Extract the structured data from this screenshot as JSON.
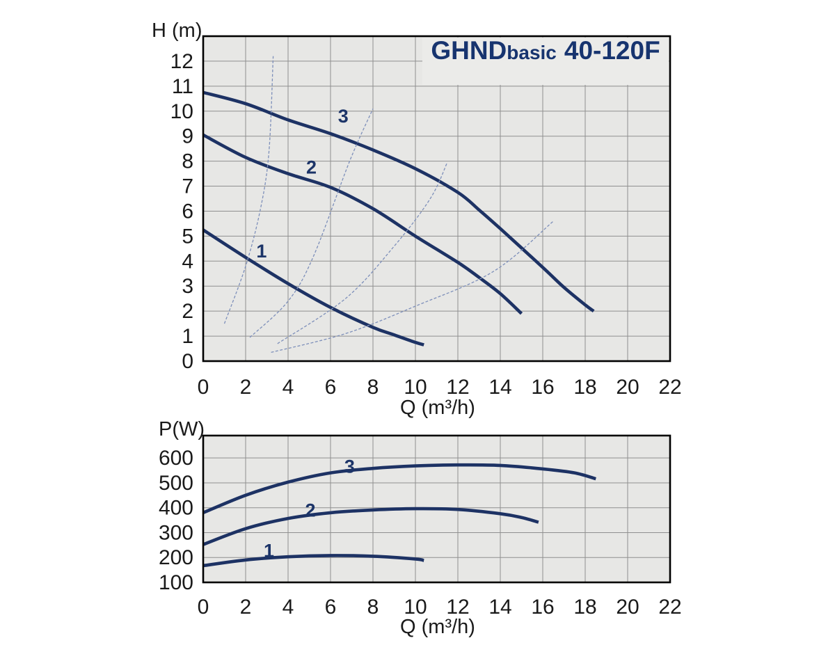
{
  "figure": {
    "kind": "pump-performance-curves",
    "colors": {
      "page_bg": "#ffffff",
      "plot_bg": "#e7e7e5",
      "title_box_bg": "#ebebe9",
      "grid": "#8f8f8f",
      "border": "#000000",
      "curve_navy": "#1d3264",
      "system_curve_blue": "#7d8fba",
      "label_navy": "#1c3468",
      "title_navy": "#17346f",
      "tick_text": "#1a1a1a"
    },
    "title_parts": {
      "brand": "GHND",
      "variant": "basic",
      "model": "40-120F"
    },
    "title_full": "GHNDbasic 40-120F"
  },
  "chart_data": [
    {
      "id": "head-flow-chart",
      "type": "line",
      "title": "GHNDbasic 40-120F",
      "xlabel": "Q (m³/h)",
      "ylabel": "H (m)",
      "xlim": [
        0,
        22
      ],
      "ylim": [
        0,
        13
      ],
      "x_ticks": [
        0,
        2,
        4,
        6,
        8,
        10,
        12,
        14,
        16,
        18,
        20,
        22
      ],
      "y_ticks": [
        0,
        1,
        2,
        3,
        4,
        5,
        6,
        7,
        8,
        9,
        10,
        11,
        12
      ],
      "grid": true,
      "legend": "none",
      "series": [
        {
          "name": "speed-3-head-curve",
          "style": "main",
          "label": "3",
          "label_at": [
            6.6,
            9.8
          ],
          "points": [
            [
              0,
              10.75
            ],
            [
              2,
              10.3
            ],
            [
              4,
              9.65
            ],
            [
              6,
              9.1
            ],
            [
              8,
              8.45
            ],
            [
              10,
              7.7
            ],
            [
              12,
              6.75
            ],
            [
              13,
              6.05
            ],
            [
              14,
              5.3
            ],
            [
              16,
              3.75
            ],
            [
              17,
              2.95
            ],
            [
              18,
              2.25
            ],
            [
              18.4,
              2.0
            ]
          ]
        },
        {
          "name": "speed-2-head-curve",
          "style": "main",
          "label": "2",
          "label_at": [
            5.1,
            7.75
          ],
          "points": [
            [
              0,
              9.05
            ],
            [
              2,
              8.15
            ],
            [
              4,
              7.5
            ],
            [
              6,
              6.95
            ],
            [
              8,
              6.1
            ],
            [
              10,
              5.0
            ],
            [
              12,
              3.95
            ],
            [
              13,
              3.35
            ],
            [
              14,
              2.7
            ],
            [
              15,
              1.9
            ]
          ]
        },
        {
          "name": "speed-1-head-curve",
          "style": "main",
          "label": "1",
          "label_at": [
            2.75,
            4.4
          ],
          "points": [
            [
              0,
              5.25
            ],
            [
              2,
              4.15
            ],
            [
              4,
              3.1
            ],
            [
              6,
              2.15
            ],
            [
              8,
              1.35
            ],
            [
              9,
              1.05
            ],
            [
              10,
              0.75
            ],
            [
              10.4,
              0.65
            ]
          ]
        },
        {
          "name": "system-curve-a",
          "style": "thin",
          "points": [
            [
              1.0,
              1.5
            ],
            [
              2.0,
              3.8
            ],
            [
              2.7,
              6.1
            ],
            [
              3.1,
              8.4
            ],
            [
              3.3,
              12.2
            ]
          ]
        },
        {
          "name": "system-curve-b",
          "style": "thin",
          "points": [
            [
              2.2,
              0.95
            ],
            [
              4.0,
              2.4
            ],
            [
              5.2,
              4.2
            ],
            [
              6.9,
              8.0
            ],
            [
              8.0,
              10.1
            ]
          ]
        },
        {
          "name": "system-curve-c",
          "style": "thin",
          "points": [
            [
              3.5,
              0.7
            ],
            [
              6.7,
              2.5
            ],
            [
              9.0,
              4.6
            ],
            [
              10.7,
              6.5
            ],
            [
              11.5,
              7.95
            ]
          ]
        },
        {
          "name": "system-curve-d",
          "style": "thin",
          "points": [
            [
              3.2,
              0.35
            ],
            [
              6.7,
              1.1
            ],
            [
              10.0,
              2.2
            ],
            [
              13.7,
              3.6
            ],
            [
              16.5,
              5.6
            ]
          ]
        }
      ]
    },
    {
      "id": "power-flow-chart",
      "type": "line",
      "title": "",
      "xlabel": "Q (m³/h)",
      "ylabel": "P(W)",
      "xlim": [
        0,
        22
      ],
      "ylim": [
        100,
        690
      ],
      "x_ticks": [
        0,
        2,
        4,
        6,
        8,
        10,
        12,
        14,
        16,
        18,
        20,
        22
      ],
      "y_ticks": [
        100,
        200,
        300,
        400,
        500,
        600
      ],
      "grid": true,
      "legend": "none",
      "series": [
        {
          "name": "speed-3-power-curve",
          "style": "main",
          "label": "3",
          "label_at": [
            6.9,
            565
          ],
          "points": [
            [
              0,
              380
            ],
            [
              2,
              450
            ],
            [
              4,
              503
            ],
            [
              6,
              540
            ],
            [
              8,
              558
            ],
            [
              10,
              568
            ],
            [
              12,
              572
            ],
            [
              14,
              570
            ],
            [
              16,
              556
            ],
            [
              17.5,
              540
            ],
            [
              18.5,
              516
            ]
          ]
        },
        {
          "name": "speed-2-power-curve",
          "style": "main",
          "label": "2",
          "label_at": [
            5.05,
            390
          ],
          "points": [
            [
              0,
              252
            ],
            [
              2,
              316
            ],
            [
              4,
              357
            ],
            [
              6,
              380
            ],
            [
              8,
              391
            ],
            [
              10,
              396
            ],
            [
              12,
              393
            ],
            [
              14,
              376
            ],
            [
              15,
              361
            ],
            [
              15.8,
              342
            ]
          ]
        },
        {
          "name": "speed-1-power-curve",
          "style": "main",
          "label": "1",
          "label_at": [
            3.1,
            227
          ],
          "points": [
            [
              0,
              167
            ],
            [
              2,
              190
            ],
            [
              4,
              203
            ],
            [
              6,
              208
            ],
            [
              8,
              205
            ],
            [
              10,
              194
            ],
            [
              10.4,
              188
            ]
          ]
        }
      ]
    }
  ]
}
